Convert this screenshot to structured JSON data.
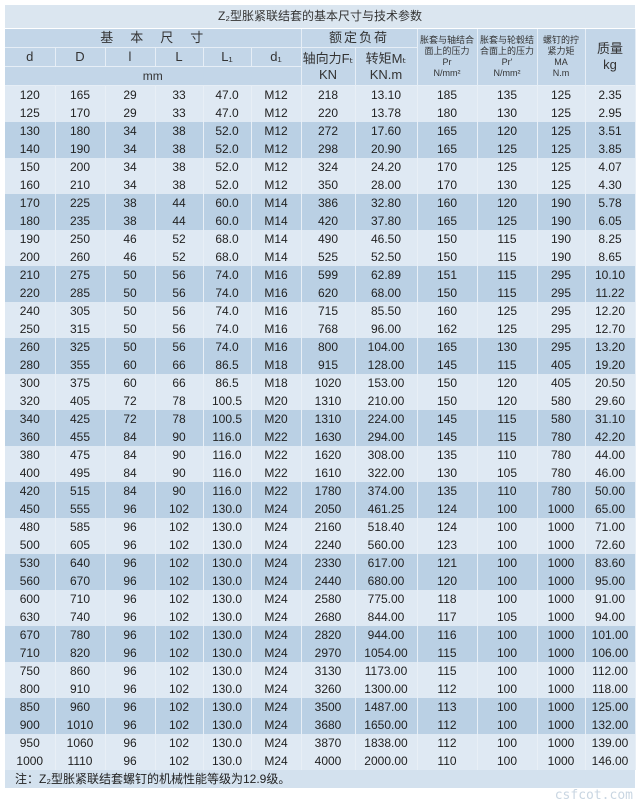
{
  "title": "Z₂型胀紧联结套的基本尺寸与技术参数",
  "header": {
    "group_dims": "基　本　尺　寸",
    "group_load": "额定负荷",
    "cols": [
      "d",
      "D",
      "l",
      "L",
      "L₁",
      "d₁"
    ],
    "unit_mm": "mm",
    "axial_force": "轴向力Fₜ",
    "axial_unit": "KN",
    "torque": "转矩Mₜ",
    "torque_unit": "KN.m",
    "pr_shaft": "胀套与轴结合面上的压力",
    "pr_shaft_sym": "Pr",
    "pr_shaft_unit": "N/mm²",
    "pr_hub": "胀套与轮毂结合面上的压力",
    "pr_hub_sym": "Pr'",
    "pr_hub_unit": "N/mm²",
    "bolt_torque": "螺钉的拧紧力矩",
    "bolt_sym": "MA",
    "bolt_unit": "N.m",
    "mass": "质量",
    "mass_unit": "kg"
  },
  "rows": [
    [
      "120",
      "165",
      "29",
      "33",
      "47.0",
      "M12",
      "218",
      "13.10",
      "185",
      "135",
      "125",
      "2.35"
    ],
    [
      "125",
      "170",
      "29",
      "33",
      "47.0",
      "M12",
      "220",
      "13.78",
      "180",
      "130",
      "125",
      "2.95"
    ],
    [
      "130",
      "180",
      "34",
      "38",
      "52.0",
      "M12",
      "272",
      "17.60",
      "165",
      "120",
      "125",
      "3.51"
    ],
    [
      "140",
      "190",
      "34",
      "38",
      "52.0",
      "M12",
      "298",
      "20.90",
      "165",
      "125",
      "125",
      "3.85"
    ],
    [
      "150",
      "200",
      "34",
      "38",
      "52.0",
      "M12",
      "324",
      "24.20",
      "170",
      "125",
      "125",
      "4.07"
    ],
    [
      "160",
      "210",
      "34",
      "38",
      "52.0",
      "M12",
      "350",
      "28.00",
      "170",
      "130",
      "125",
      "4.30"
    ],
    [
      "170",
      "225",
      "38",
      "44",
      "60.0",
      "M14",
      "386",
      "32.80",
      "160",
      "120",
      "190",
      "5.78"
    ],
    [
      "180",
      "235",
      "38",
      "44",
      "60.0",
      "M14",
      "420",
      "37.80",
      "165",
      "125",
      "190",
      "6.05"
    ],
    [
      "190",
      "250",
      "46",
      "52",
      "68.0",
      "M14",
      "490",
      "46.50",
      "150",
      "115",
      "190",
      "8.25"
    ],
    [
      "200",
      "260",
      "46",
      "52",
      "68.0",
      "M14",
      "525",
      "52.50",
      "150",
      "115",
      "190",
      "8.65"
    ],
    [
      "210",
      "275",
      "50",
      "56",
      "74.0",
      "M16",
      "599",
      "62.89",
      "151",
      "115",
      "295",
      "10.10"
    ],
    [
      "220",
      "285",
      "50",
      "56",
      "74.0",
      "M16",
      "620",
      "68.00",
      "150",
      "115",
      "295",
      "11.22"
    ],
    [
      "240",
      "305",
      "50",
      "56",
      "74.0",
      "M16",
      "715",
      "85.50",
      "160",
      "125",
      "295",
      "12.20"
    ],
    [
      "250",
      "315",
      "50",
      "56",
      "74.0",
      "M16",
      "768",
      "96.00",
      "162",
      "125",
      "295",
      "12.70"
    ],
    [
      "260",
      "325",
      "50",
      "56",
      "74.0",
      "M16",
      "800",
      "104.00",
      "165",
      "130",
      "295",
      "13.20"
    ],
    [
      "280",
      "355",
      "60",
      "66",
      "86.5",
      "M18",
      "915",
      "128.00",
      "145",
      "115",
      "405",
      "19.20"
    ],
    [
      "300",
      "375",
      "60",
      "66",
      "86.5",
      "M18",
      "1020",
      "153.00",
      "150",
      "120",
      "405",
      "20.50"
    ],
    [
      "320",
      "405",
      "72",
      "78",
      "100.5",
      "M20",
      "1310",
      "210.00",
      "150",
      "120",
      "580",
      "29.60"
    ],
    [
      "340",
      "425",
      "72",
      "78",
      "100.5",
      "M20",
      "1310",
      "224.00",
      "145",
      "115",
      "580",
      "31.10"
    ],
    [
      "360",
      "455",
      "84",
      "90",
      "116.0",
      "M22",
      "1630",
      "294.00",
      "145",
      "115",
      "780",
      "42.20"
    ],
    [
      "380",
      "475",
      "84",
      "90",
      "116.0",
      "M22",
      "1620",
      "308.00",
      "135",
      "110",
      "780",
      "44.00"
    ],
    [
      "400",
      "495",
      "84",
      "90",
      "116.0",
      "M22",
      "1610",
      "322.00",
      "130",
      "105",
      "780",
      "46.00"
    ],
    [
      "420",
      "515",
      "84",
      "90",
      "116.0",
      "M22",
      "1780",
      "374.00",
      "135",
      "110",
      "780",
      "50.00"
    ],
    [
      "450",
      "555",
      "96",
      "102",
      "130.0",
      "M24",
      "2050",
      "461.25",
      "124",
      "100",
      "1000",
      "65.00"
    ],
    [
      "480",
      "585",
      "96",
      "102",
      "130.0",
      "M24",
      "2160",
      "518.40",
      "124",
      "100",
      "1000",
      "71.00"
    ],
    [
      "500",
      "605",
      "96",
      "102",
      "130.0",
      "M24",
      "2240",
      "560.00",
      "123",
      "100",
      "1000",
      "72.60"
    ],
    [
      "530",
      "640",
      "96",
      "102",
      "130.0",
      "M24",
      "2330",
      "617.00",
      "121",
      "100",
      "1000",
      "83.60"
    ],
    [
      "560",
      "670",
      "96",
      "102",
      "130.0",
      "M24",
      "2440",
      "680.00",
      "120",
      "100",
      "1000",
      "95.00"
    ],
    [
      "600",
      "710",
      "96",
      "102",
      "130.0",
      "M24",
      "2580",
      "775.00",
      "118",
      "100",
      "1000",
      "91.00"
    ],
    [
      "630",
      "740",
      "96",
      "102",
      "130.0",
      "M24",
      "2680",
      "844.00",
      "117",
      "105",
      "1000",
      "94.00"
    ],
    [
      "670",
      "780",
      "96",
      "102",
      "130.0",
      "M24",
      "2820",
      "944.00",
      "116",
      "100",
      "1000",
      "101.00"
    ],
    [
      "710",
      "820",
      "96",
      "102",
      "130.0",
      "M24",
      "2970",
      "1054.00",
      "115",
      "100",
      "1000",
      "106.00"
    ],
    [
      "750",
      "860",
      "96",
      "102",
      "130.0",
      "M24",
      "3130",
      "1173.00",
      "115",
      "100",
      "1000",
      "112.00"
    ],
    [
      "800",
      "910",
      "96",
      "102",
      "130.0",
      "M24",
      "3260",
      "1300.00",
      "112",
      "100",
      "1000",
      "118.00"
    ],
    [
      "850",
      "960",
      "96",
      "102",
      "130.0",
      "M24",
      "3500",
      "1487.00",
      "113",
      "100",
      "1000",
      "125.00"
    ],
    [
      "900",
      "1010",
      "96",
      "102",
      "130.0",
      "M24",
      "3680",
      "1650.00",
      "112",
      "100",
      "1000",
      "132.00"
    ],
    [
      "950",
      "1060",
      "96",
      "102",
      "130.0",
      "M24",
      "3870",
      "1838.00",
      "112",
      "100",
      "1000",
      "139.00"
    ],
    [
      "1000",
      "1110",
      "96",
      "102",
      "130.0",
      "M24",
      "4000",
      "2000.00",
      "110",
      "100",
      "1000",
      "146.00"
    ]
  ],
  "note": "注：Z₂型胀紧联结套螺钉的机械性能等级为12.9级。",
  "watermark": "csfcot.com"
}
